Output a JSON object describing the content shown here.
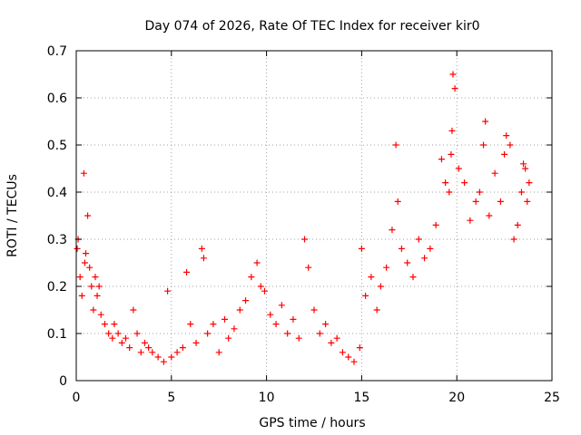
{
  "chart_data": {
    "type": "scatter",
    "title": "Day 074 of 2026, Rate Of TEC Index for receiver kir0",
    "xlabel": "GPS time / hours",
    "ylabel": "ROTI / TECUs",
    "xlim": [
      0,
      25
    ],
    "ylim": [
      0,
      0.7
    ],
    "xticks": [
      "0",
      "5",
      "10",
      "15",
      "20",
      "25"
    ],
    "yticks": [
      "0",
      "0.1",
      "0.2",
      "0.3",
      "0.4",
      "0.5",
      "0.6",
      "0.7"
    ],
    "grid": true,
    "marker": "+",
    "marker_color": "#ff0000",
    "series": [
      {
        "name": "ROTI",
        "x": [
          0.05,
          0.1,
          0.2,
          0.3,
          0.4,
          0.45,
          0.5,
          0.6,
          0.7,
          0.8,
          0.9,
          1.0,
          1.1,
          1.2,
          1.3,
          1.5,
          1.7,
          1.9,
          2.0,
          2.2,
          2.4,
          2.6,
          2.8,
          3.0,
          3.2,
          3.4,
          3.6,
          3.8,
          4.0,
          4.3,
          4.6,
          4.8,
          5.0,
          5.3,
          5.6,
          5.8,
          6.0,
          6.3,
          6.6,
          6.7,
          6.9,
          7.2,
          7.5,
          7.8,
          8.0,
          8.3,
          8.6,
          8.9,
          9.2,
          9.5,
          9.7,
          9.9,
          10.2,
          10.5,
          10.8,
          11.1,
          11.4,
          11.7,
          12.0,
          12.2,
          12.5,
          12.8,
          13.1,
          13.4,
          13.7,
          14.0,
          14.3,
          14.6,
          14.9,
          15.0,
          15.2,
          15.5,
          15.8,
          16.0,
          16.3,
          16.6,
          16.8,
          16.9,
          17.1,
          17.4,
          17.7,
          18.0,
          18.3,
          18.6,
          18.9,
          19.2,
          19.4,
          19.6,
          19.7,
          19.75,
          19.8,
          19.9,
          20.1,
          20.4,
          20.7,
          21.0,
          21.2,
          21.4,
          21.5,
          21.7,
          22.0,
          22.3,
          22.5,
          22.6,
          22.8,
          23.0,
          23.2,
          23.4,
          23.5,
          23.6,
          23.7,
          23.8
        ],
        "y": [
          0.28,
          0.3,
          0.22,
          0.18,
          0.44,
          0.25,
          0.27,
          0.35,
          0.24,
          0.2,
          0.15,
          0.22,
          0.18,
          0.2,
          0.14,
          0.12,
          0.1,
          0.09,
          0.12,
          0.1,
          0.08,
          0.09,
          0.07,
          0.15,
          0.1,
          0.06,
          0.08,
          0.07,
          0.06,
          0.05,
          0.04,
          0.19,
          0.05,
          0.06,
          0.07,
          0.23,
          0.12,
          0.08,
          0.28,
          0.26,
          0.1,
          0.12,
          0.06,
          0.13,
          0.09,
          0.11,
          0.15,
          0.17,
          0.22,
          0.25,
          0.2,
          0.19,
          0.14,
          0.12,
          0.16,
          0.1,
          0.13,
          0.09,
          0.3,
          0.24,
          0.15,
          0.1,
          0.12,
          0.08,
          0.09,
          0.06,
          0.05,
          0.04,
          0.07,
          0.28,
          0.18,
          0.22,
          0.15,
          0.2,
          0.24,
          0.32,
          0.5,
          0.38,
          0.28,
          0.25,
          0.22,
          0.3,
          0.26,
          0.28,
          0.33,
          0.47,
          0.42,
          0.4,
          0.48,
          0.53,
          0.65,
          0.62,
          0.45,
          0.42,
          0.34,
          0.38,
          0.4,
          0.5,
          0.55,
          0.35,
          0.44,
          0.38,
          0.48,
          0.52,
          0.5,
          0.3,
          0.33,
          0.4,
          0.46,
          0.45,
          0.38,
          0.42
        ]
      }
    ]
  }
}
